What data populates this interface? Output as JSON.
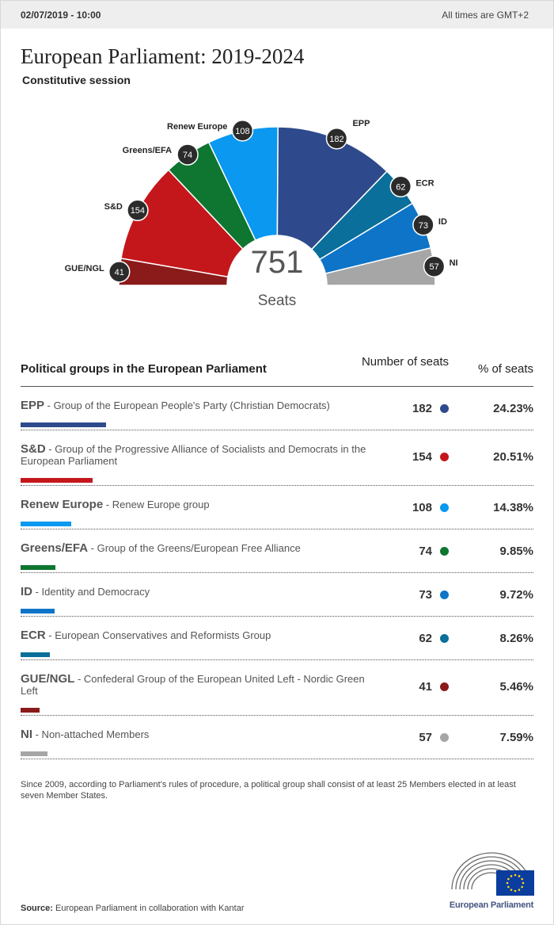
{
  "header": {
    "date": "02/07/2019 - 10:00",
    "timezone": "All times are GMT+2"
  },
  "title": "European Parliament: 2019-2024",
  "subtitle": "Constitutive session",
  "chart_data": {
    "type": "pie",
    "title": "European Parliament: 2019-2024",
    "subtitle": "Constitutive session",
    "center_value": "751",
    "center_label": "Seats",
    "categories": [
      "GUE/NGL",
      "S&D",
      "Greens/EFA",
      "Renew Europe",
      "EPP",
      "ECR",
      "ID",
      "NI"
    ],
    "values": [
      41,
      154,
      74,
      108,
      182,
      62,
      73,
      57
    ],
    "colors": [
      "#8b1a1a",
      "#c4171c",
      "#0e7630",
      "#0a98f0",
      "#2e4a8c",
      "#0a6f9a",
      "#0d74c8",
      "#a6a6a6"
    ]
  },
  "table": {
    "col_group": "Political groups in the European Parliament",
    "col_seats": "Number of seats",
    "col_pct": "% of seats",
    "rows": [
      {
        "abbr": "EPP",
        "name": " - Group of the European People's Party (Christian Democrats)",
        "seats": "182",
        "pct": "24.23%",
        "color": "#2e4a8c"
      },
      {
        "abbr": "S&D",
        "name": " - Group of the Progressive Alliance of Socialists and Democrats in the European Parliament",
        "seats": "154",
        "pct": "20.51%",
        "color": "#c4171c"
      },
      {
        "abbr": "Renew Europe",
        "name": " - Renew Europe group",
        "seats": "108",
        "pct": "14.38%",
        "color": "#0a98f0"
      },
      {
        "abbr": "Greens/EFA",
        "name": " - Group of the Greens/European Free Alliance",
        "seats": "74",
        "pct": "9.85%",
        "color": "#0e7630"
      },
      {
        "abbr": "ID",
        "name": " - Identity and Democracy",
        "seats": "73",
        "pct": "9.72%",
        "color": "#0d74c8"
      },
      {
        "abbr": "ECR",
        "name": " - European Conservatives and Reformists Group",
        "seats": "62",
        "pct": "8.26%",
        "color": "#0a6f9a"
      },
      {
        "abbr": "GUE/NGL",
        "name": " - Confederal Group of the European United Left - Nordic Green Left",
        "seats": "41",
        "pct": "5.46%",
        "color": "#8b1a1a"
      },
      {
        "abbr": "NI",
        "name": " - Non-attached Members",
        "seats": "57",
        "pct": "7.59%",
        "color": "#a6a6a6"
      }
    ]
  },
  "note": "Since 2009, according to Parliament's rules of procedure, a political group shall consist of at least 25 Members elected in at least seven Member States.",
  "source": {
    "label": "Source:",
    "text": " European Parliament in collaboration with Kantar"
  },
  "logo": {
    "text": "European Parliament",
    "icon": "european-parliament-logo"
  }
}
